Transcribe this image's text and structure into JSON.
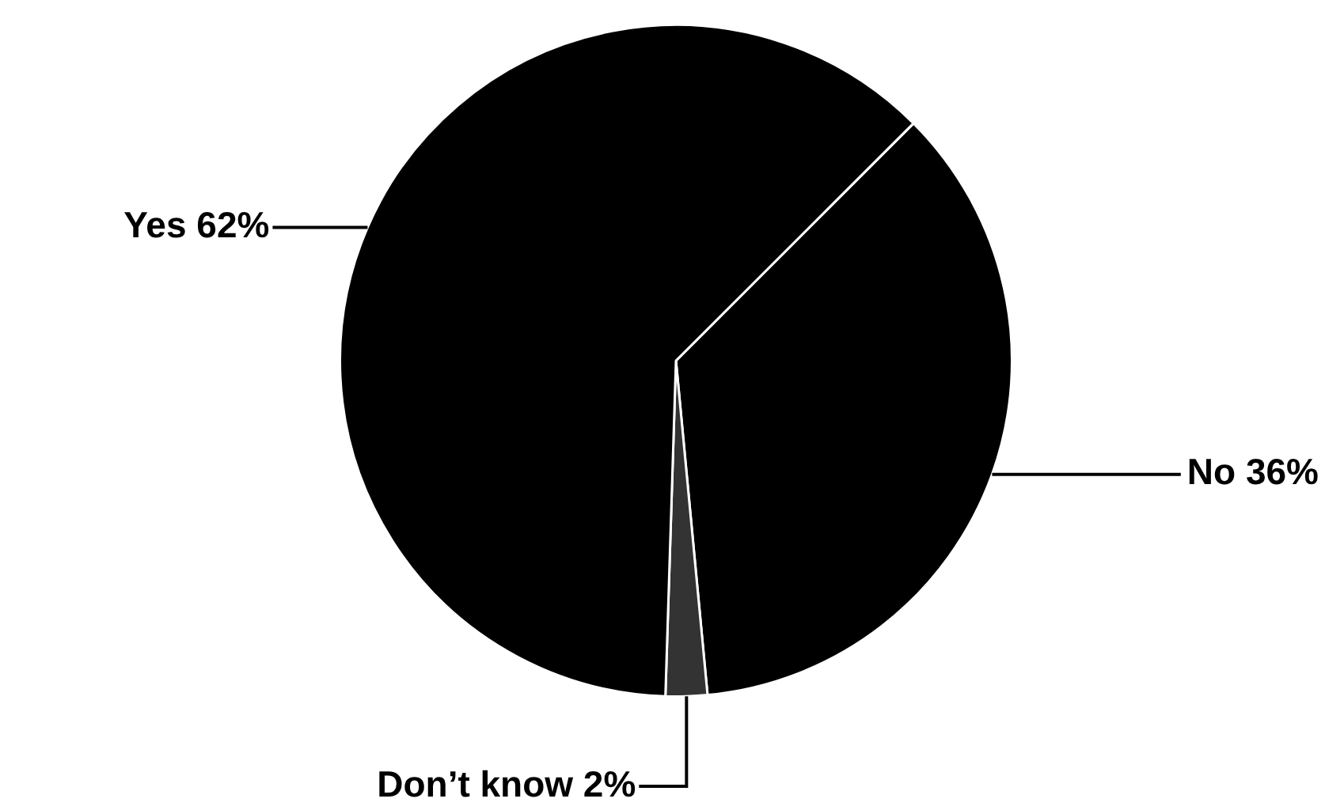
{
  "chart_data": {
    "type": "pie",
    "categories": [
      "No",
      "Don’t know",
      "Yes"
    ],
    "values": [
      36,
      2,
      62
    ],
    "value_labels": [
      "36%",
      "2%",
      "62%"
    ],
    "colors": [
      "#000000",
      "#333333",
      "#000000"
    ],
    "legend": false
  }
}
